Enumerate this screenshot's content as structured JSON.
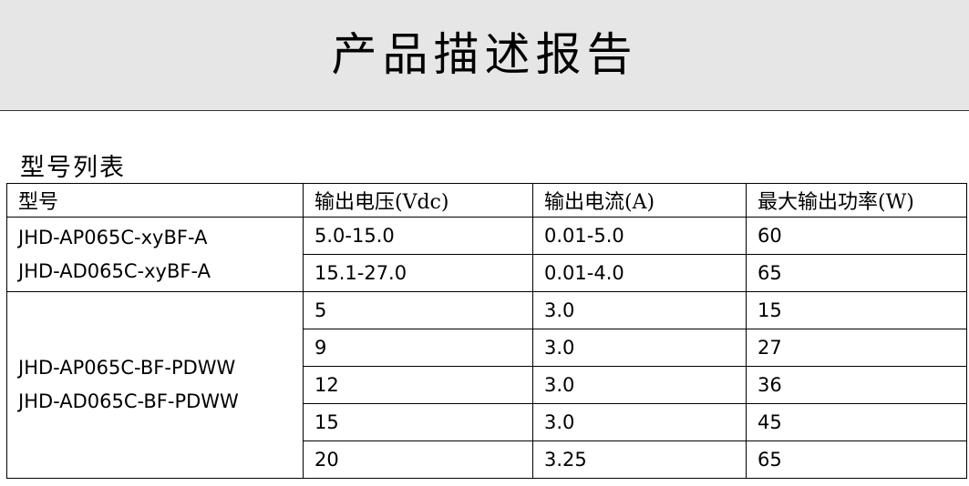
{
  "title": "产品描述报告",
  "section_title": "型号列表",
  "table": {
    "headers": [
      "型号",
      "输出电压(Vdc)",
      "输出电流(A)",
      "最大输出功率(W)"
    ],
    "groups": [
      {
        "models": [
          "JHD-AP065C-xyBF-A",
          "JHD-AD065C-xyBF-A"
        ],
        "rows": [
          [
            "5.0-15.0",
            "0.01-5.0",
            "60"
          ],
          [
            "15.1-27.0",
            "0.01-4.0",
            "65"
          ]
        ]
      },
      {
        "models": [
          "JHD-AP065C-BF-PDWW",
          "JHD-AD065C-BF-PDWW"
        ],
        "rows": [
          [
            "5",
            "3.0",
            "15"
          ],
          [
            "9",
            "3.0",
            "27"
          ],
          [
            "12",
            "3.0",
            "36"
          ],
          [
            "15",
            "3.0",
            "45"
          ],
          [
            "20",
            "3.25",
            "65"
          ]
        ]
      }
    ]
  }
}
